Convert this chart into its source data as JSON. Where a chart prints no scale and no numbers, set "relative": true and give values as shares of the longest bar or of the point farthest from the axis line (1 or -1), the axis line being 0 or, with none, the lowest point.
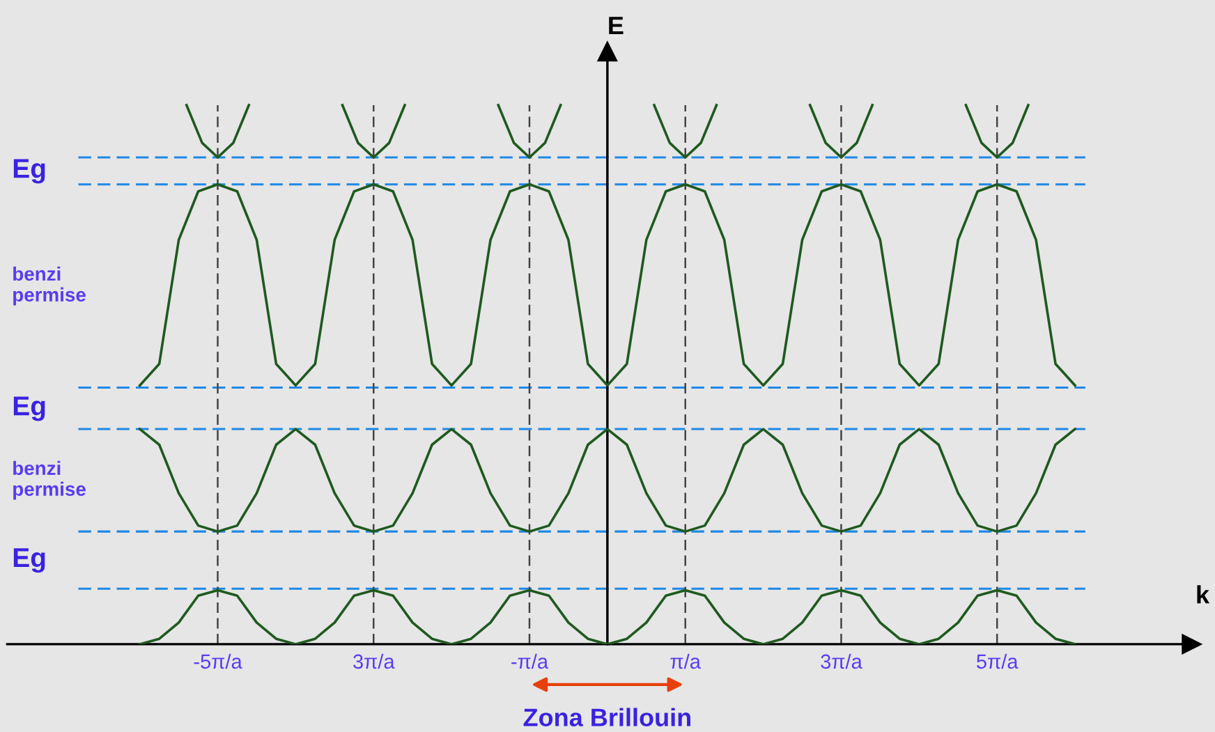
{
  "chart_data": {
    "type": "line",
    "relative": true,
    "xlabel": "k",
    "ylabel": "E",
    "x": [
      -6,
      -5.75,
      -5.5,
      -5.25,
      -5,
      -4.75,
      -4.5,
      -4.25,
      -4,
      -3.75,
      -3.5,
      -3.25,
      -3,
      -2.75,
      -2.5,
      -2.25,
      -2,
      -1.75,
      -1.5,
      -1.25,
      -1,
      -0.75,
      -0.5,
      -0.25,
      0,
      0.25,
      0.5,
      0.75,
      1,
      1.25,
      1.5,
      1.75,
      2,
      2.25,
      2.5,
      2.75,
      3,
      3.25,
      3.5,
      3.75,
      4,
      4.25,
      4.5,
      4.75,
      5,
      5.25,
      5.5,
      5.75,
      6
    ],
    "xlim": [
      -7.7,
      7.5
    ],
    "xticks": [
      {
        "value": -5,
        "label": "-5π/a"
      },
      {
        "value": -3,
        "label": "3π/a"
      },
      {
        "value": -1,
        "label": "-π/a"
      },
      {
        "value": 1,
        "label": "π/a"
      },
      {
        "value": 3,
        "label": "3π/a"
      },
      {
        "value": 5,
        "label": "5π/a"
      }
    ],
    "series": [
      {
        "color": "#1f5a1f",
        "values": [
          0,
          0.01,
          0.04,
          0.09,
          0.1,
          0.09,
          0.04,
          0.01,
          0,
          0.01,
          0.04,
          0.09,
          0.1,
          0.09,
          0.04,
          0.01,
          0,
          0.01,
          0.04,
          0.09,
          0.1,
          0.09,
          0.04,
          0.01,
          0,
          0.01,
          0.04,
          0.09,
          0.1,
          0.09,
          0.04,
          0.01,
          0,
          0.01,
          0.04,
          0.09,
          0.1,
          0.09,
          0.04,
          0.01,
          0,
          0.01,
          0.04,
          0.09,
          0.1,
          0.09,
          0.04,
          0.01,
          0
        ]
      },
      {
        "color": "#1f5a1f",
        "values": [
          0.399,
          0.37,
          0.28,
          0.22,
          0.209,
          0.22,
          0.28,
          0.37,
          0.399,
          0.37,
          0.28,
          0.22,
          0.209,
          0.22,
          0.28,
          0.37,
          0.399,
          0.37,
          0.28,
          0.22,
          0.209,
          0.22,
          0.28,
          0.37,
          0.399,
          0.37,
          0.28,
          0.22,
          0.209,
          0.22,
          0.28,
          0.37,
          0.399,
          0.37,
          0.28,
          0.22,
          0.209,
          0.22,
          0.28,
          0.37,
          0.399,
          0.37,
          0.28,
          0.22,
          0.209,
          0.22,
          0.28,
          0.37,
          0.399
        ]
      },
      {
        "color": "#1f5a1f",
        "values": [
          0.48,
          0.52,
          0.75,
          0.84,
          0.853,
          0.84,
          0.75,
          0.52,
          0.48,
          0.52,
          0.75,
          0.84,
          0.853,
          0.84,
          0.75,
          0.52,
          0.48,
          0.52,
          0.75,
          0.84,
          0.853,
          0.84,
          0.75,
          0.52,
          0.48,
          0.52,
          0.75,
          0.84,
          0.853,
          0.84,
          0.75,
          0.52,
          0.48,
          0.52,
          0.75,
          0.84,
          0.853,
          0.84,
          0.75,
          0.52,
          0.48,
          0.52,
          0.75,
          0.84,
          0.853,
          0.84,
          0.75,
          0.52,
          0.48
        ]
      },
      {
        "color": "#1f5a1f",
        "x": [
          -5.4,
          -5.2,
          -5,
          -4.8,
          -4.6
        ],
        "values": [
          1.0,
          0.93,
          0.903,
          0.93,
          1.0
        ]
      },
      {
        "color": "#1f5a1f",
        "x": [
          -3.4,
          -3.2,
          -3,
          -2.8,
          -2.6
        ],
        "values": [
          1.0,
          0.93,
          0.903,
          0.93,
          1.0
        ]
      },
      {
        "color": "#1f5a1f",
        "x": [
          -1.4,
          -1.2,
          -1,
          -0.8,
          -0.6
        ],
        "values": [
          1.0,
          0.93,
          0.903,
          0.93,
          1.0
        ]
      },
      {
        "color": "#1f5a1f",
        "x": [
          0.6,
          0.8,
          1,
          1.2,
          1.4
        ],
        "values": [
          1.0,
          0.93,
          0.903,
          0.93,
          1.0
        ]
      },
      {
        "color": "#1f5a1f",
        "x": [
          2.6,
          2.8,
          3,
          3.2,
          3.4
        ],
        "values": [
          1.0,
          0.93,
          0.903,
          0.93,
          1.0
        ]
      },
      {
        "color": "#1f5a1f",
        "x": [
          4.6,
          4.8,
          5,
          5.2,
          5.4
        ],
        "values": [
          1.0,
          0.93,
          0.903,
          0.93,
          1.0
        ]
      }
    ],
    "ref_lines": [
      {
        "axis": "y",
        "value": 0.903,
        "color": "#1e88e5",
        "line_style": "dashed"
      },
      {
        "axis": "y",
        "value": 0.853,
        "color": "#1e88e5",
        "line_style": "dashed"
      },
      {
        "axis": "y",
        "value": 0.476,
        "color": "#1e88e5",
        "line_style": "dashed"
      },
      {
        "axis": "y",
        "value": 0.399,
        "color": "#1e88e5",
        "line_style": "dashed"
      },
      {
        "axis": "y",
        "value": 0.209,
        "color": "#1e88e5",
        "line_style": "dashed"
      },
      {
        "axis": "y",
        "value": 0.103,
        "color": "#1e88e5",
        "line_style": "dashed"
      },
      {
        "axis": "x",
        "value": -5,
        "color": "#444444",
        "line_style": "dashed"
      },
      {
        "axis": "x",
        "value": -3,
        "color": "#444444",
        "line_style": "dashed"
      },
      {
        "axis": "x",
        "value": -1,
        "color": "#444444",
        "line_style": "dashed"
      },
      {
        "axis": "x",
        "value": 1,
        "color": "#444444",
        "line_style": "dashed"
      },
      {
        "axis": "x",
        "value": 3,
        "color": "#444444",
        "line_style": "dashed"
      },
      {
        "axis": "x",
        "value": 5,
        "color": "#444444",
        "line_style": "dashed"
      }
    ],
    "annotations": [
      "Eg",
      "benzi\npermise",
      "Eg",
      "benzi\npermise",
      "Eg",
      "Zona Brillouin"
    ],
    "line_style": "solid",
    "marker": "none",
    "grid": false,
    "legend": false
  }
}
